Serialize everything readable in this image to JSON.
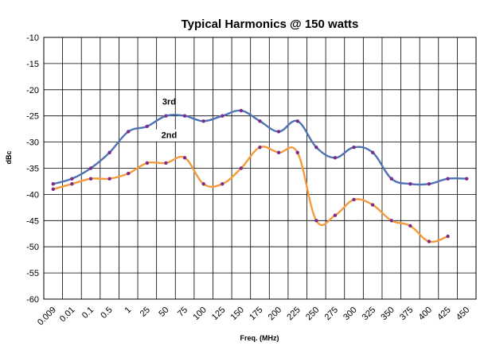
{
  "chart_data": {
    "type": "line",
    "title": "Typical Harmonics @ 150 watts",
    "xlabel": "Freq. (MHz)",
    "ylabel": "dBc",
    "ylim": [
      -60,
      -10
    ],
    "yticks": [
      "-10",
      "-15",
      "-20",
      "-25",
      "-30",
      "-35",
      "-40",
      "-45",
      "-50",
      "-55",
      "-60"
    ],
    "ytick_values": [
      -10,
      -15,
      -20,
      -25,
      -30,
      -35,
      -40,
      -45,
      -50,
      -55,
      -60
    ],
    "categories": [
      "0.009",
      "0.01",
      "0.1",
      "0.5",
      "1",
      "25",
      "50",
      "75",
      "100",
      "125",
      "150",
      "175",
      "200",
      "225",
      "250",
      "275",
      "300",
      "325",
      "350",
      "375",
      "400",
      "425",
      "450"
    ],
    "grid": true,
    "series": [
      {
        "name": "3rd",
        "color": "#4f73b4",
        "values": [
          -38,
          -37,
          -35,
          -32,
          -28,
          -27,
          -25,
          -25,
          -26,
          -25,
          -24,
          -26,
          -28,
          -26,
          -31,
          -33,
          -31,
          -32,
          -37,
          -38,
          -38,
          -37,
          -37
        ]
      },
      {
        "name": "2nd",
        "color": "#f49b3c",
        "values": [
          -39,
          -38,
          -37,
          -37,
          -36,
          -34,
          -34,
          -33,
          -38,
          -38,
          -35,
          -31,
          -32,
          -32,
          -45,
          -44,
          -41,
          -42,
          -45,
          -46,
          -49,
          -48,
          null
        ]
      }
    ],
    "point_color": "#7a2b8c"
  }
}
